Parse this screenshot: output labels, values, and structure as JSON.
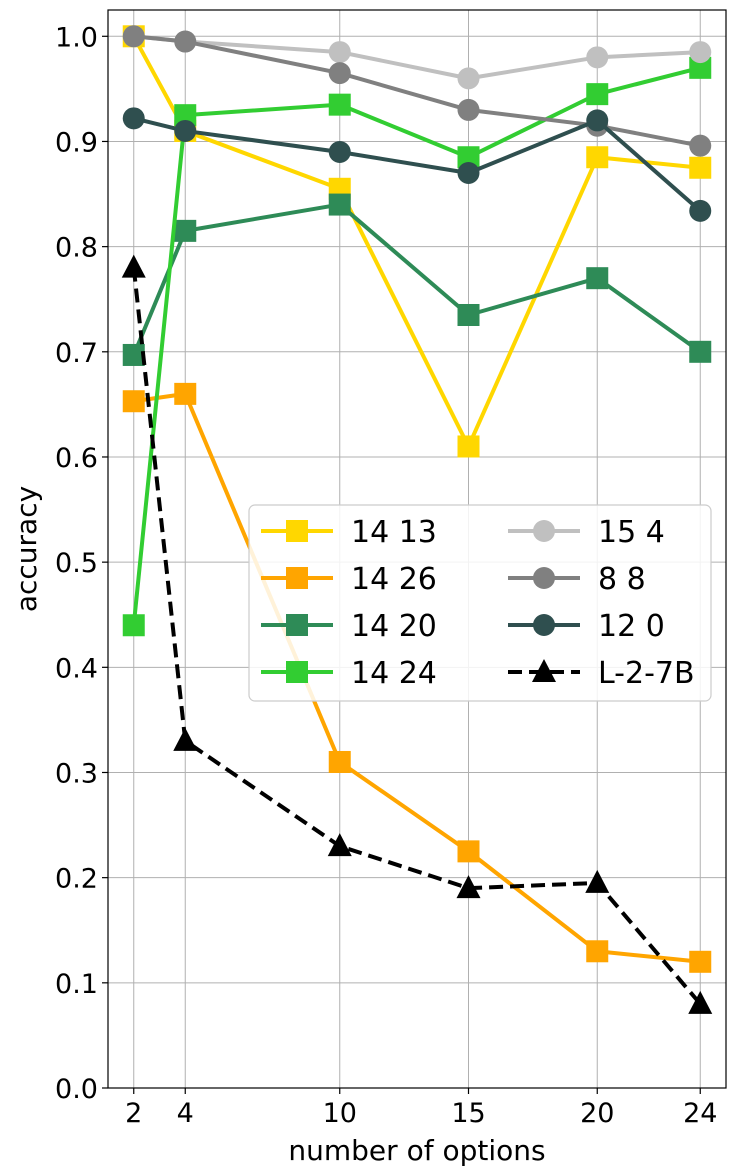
{
  "chart_data": {
    "type": "line",
    "xlabel": "number of options",
    "ylabel": "accuracy",
    "x": [
      2,
      4,
      10,
      15,
      20,
      24
    ],
    "xticks": [
      2,
      4,
      10,
      15,
      20,
      24
    ],
    "xlim": [
      1,
      25
    ],
    "ylim": [
      0,
      1.025
    ],
    "yticks": [
      0.0,
      0.1,
      0.2,
      0.3,
      0.4,
      0.5,
      0.6,
      0.7,
      0.8,
      0.9,
      1.0
    ],
    "ytick_labels": [
      "0.0",
      "0.1",
      "0.2",
      "0.3",
      "0.4",
      "0.5",
      "0.6",
      "0.7",
      "0.8",
      "0.9",
      "1.0"
    ],
    "grid": true,
    "legend": {
      "placement": "center-right",
      "columns": 2
    },
    "series": [
      {
        "name": "14 13",
        "color": "#ffd700",
        "marker": "square",
        "dashed": false,
        "values": [
          1.0,
          0.91,
          0.855,
          0.61,
          0.885,
          0.875
        ]
      },
      {
        "name": "14 26",
        "color": "#ffa500",
        "marker": "square",
        "dashed": false,
        "values": [
          0.653,
          0.66,
          0.31,
          0.225,
          0.13,
          0.12
        ]
      },
      {
        "name": "14 20",
        "color": "#2e8b57",
        "marker": "square",
        "dashed": false,
        "values": [
          0.697,
          0.815,
          0.84,
          0.735,
          0.77,
          0.7
        ]
      },
      {
        "name": "14 24",
        "color": "#32cd32",
        "marker": "square",
        "dashed": false,
        "values": [
          0.44,
          0.925,
          0.935,
          0.885,
          0.945,
          0.97
        ]
      },
      {
        "name": "15 4",
        "color": "#c0c0c0",
        "marker": "circle",
        "dashed": false,
        "values": [
          1.0,
          0.995,
          0.985,
          0.96,
          0.98,
          0.985
        ]
      },
      {
        "name": "8 8",
        "color": "#808080",
        "marker": "circle",
        "dashed": false,
        "values": [
          1.0,
          0.995,
          0.965,
          0.93,
          0.915,
          0.896
        ]
      },
      {
        "name": "12 0",
        "color": "#2f4f4f",
        "marker": "circle",
        "dashed": false,
        "values": [
          0.922,
          0.91,
          0.89,
          0.87,
          0.92,
          0.834
        ]
      },
      {
        "name": "L-2-7B",
        "color": "#000000",
        "marker": "triangle",
        "dashed": true,
        "values": [
          0.78,
          0.33,
          0.23,
          0.19,
          0.195,
          0.08
        ]
      }
    ]
  }
}
